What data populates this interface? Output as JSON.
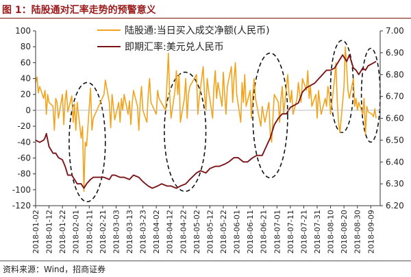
{
  "header": {
    "title": "图 1：陆股通对汇率走势的预警意义"
  },
  "footer": {
    "source": "资料来源：Wind，招商证券"
  },
  "colors": {
    "flow": "#F2A31B",
    "rate": "#7A1418",
    "axis": "#333333",
    "grid": "#BBBBBB",
    "ellipse": "#111111"
  },
  "chart_data": {
    "type": "line",
    "x": [
      "2018-01-02",
      "2018-01-12",
      "2018-01-22",
      "2018-02-01",
      "2018-02-11",
      "2018-02-21",
      "2018-03-03",
      "2018-03-13",
      "2018-03-23",
      "2018-04-02",
      "2018-04-12",
      "2018-04-22",
      "2018-05-02",
      "2018-05-12",
      "2018-05-22",
      "2018-06-01",
      "2018-06-11",
      "2018-06-21",
      "2018-07-01",
      "2018-07-11",
      "2018-07-21",
      "2018-07-31",
      "2018-08-10",
      "2018-08-20",
      "2018-08-30",
      "2018-09-09"
    ],
    "xlim": [
      "2018-01-02",
      "2018-09-16"
    ],
    "left_axis": {
      "ticks": [
        100,
        80,
        60,
        40,
        20,
        0,
        -20,
        -40,
        -60,
        -80,
        -100,
        -120
      ],
      "range": [
        -120,
        100
      ]
    },
    "right_axis": {
      "ticks": [
        "7.00",
        "6.90",
        "6.80",
        "6.70",
        "6.60",
        "6.50",
        "6.40",
        "6.30",
        "6.20"
      ],
      "range": [
        6.2,
        7.0
      ]
    },
    "series": [
      {
        "name": "陆股通:当日买入成交净额(人民币)",
        "axis": "left",
        "points": [
          [
            "2018-01-02",
            35
          ],
          [
            "2018-01-03",
            42
          ],
          [
            "2018-01-04",
            22
          ],
          [
            "2018-01-05",
            30
          ],
          [
            "2018-01-08",
            15
          ],
          [
            "2018-01-09",
            25
          ],
          [
            "2018-01-10",
            -5
          ],
          [
            "2018-01-11",
            20
          ],
          [
            "2018-01-12",
            10
          ],
          [
            "2018-01-15",
            5
          ],
          [
            "2018-01-16",
            -25
          ],
          [
            "2018-01-17",
            15
          ],
          [
            "2018-01-18",
            10
          ],
          [
            "2018-01-19",
            -10
          ],
          [
            "2018-01-22",
            20
          ],
          [
            "2018-01-23",
            -18
          ],
          [
            "2018-01-24",
            12
          ],
          [
            "2018-01-25",
            25
          ],
          [
            "2018-01-26",
            -2
          ],
          [
            "2018-01-29",
            18
          ],
          [
            "2018-01-30",
            -15
          ],
          [
            "2018-01-31",
            8
          ],
          [
            "2018-02-01",
            -25
          ],
          [
            "2018-02-02",
            10
          ],
          [
            "2018-02-05",
            -35
          ],
          [
            "2018-02-06",
            -20
          ],
          [
            "2018-02-07",
            -102
          ],
          [
            "2018-02-08",
            -40
          ],
          [
            "2018-02-09",
            -45
          ],
          [
            "2018-02-12",
            28
          ],
          [
            "2018-02-13",
            -25
          ],
          [
            "2018-02-14",
            -10
          ],
          [
            "2018-02-22",
            20
          ],
          [
            "2018-02-23",
            38
          ],
          [
            "2018-02-26",
            10
          ],
          [
            "2018-02-27",
            -22
          ],
          [
            "2018-02-28",
            20
          ],
          [
            "2018-03-01",
            5
          ],
          [
            "2018-03-02",
            -12
          ],
          [
            "2018-03-05",
            10
          ],
          [
            "2018-03-06",
            -15
          ],
          [
            "2018-03-07",
            15
          ],
          [
            "2018-03-08",
            0
          ],
          [
            "2018-03-09",
            20
          ],
          [
            "2018-03-12",
            -5
          ],
          [
            "2018-03-13",
            12
          ],
          [
            "2018-03-14",
            -18
          ],
          [
            "2018-03-15",
            8
          ],
          [
            "2018-03-16",
            25
          ],
          [
            "2018-03-19",
            5
          ],
          [
            "2018-03-20",
            -25
          ],
          [
            "2018-03-21",
            10
          ],
          [
            "2018-03-22",
            30
          ],
          [
            "2018-03-23",
            0
          ],
          [
            "2018-03-26",
            -15
          ],
          [
            "2018-03-27",
            20
          ],
          [
            "2018-03-28",
            40
          ],
          [
            "2018-03-29",
            10
          ],
          [
            "2018-04-02",
            -5
          ],
          [
            "2018-04-03",
            25
          ],
          [
            "2018-04-04",
            15
          ],
          [
            "2018-04-09",
            0
          ],
          [
            "2018-04-10",
            35
          ],
          [
            "2018-04-11",
            72
          ],
          [
            "2018-04-12",
            20
          ],
          [
            "2018-04-13",
            -10
          ],
          [
            "2018-04-16",
            25
          ],
          [
            "2018-04-17",
            50
          ],
          [
            "2018-04-18",
            20
          ],
          [
            "2018-04-19",
            45
          ],
          [
            "2018-04-20",
            -15
          ],
          [
            "2018-04-23",
            15
          ],
          [
            "2018-04-24",
            40
          ],
          [
            "2018-04-25",
            -10
          ],
          [
            "2018-04-26",
            20
          ],
          [
            "2018-04-27",
            30
          ],
          [
            "2018-05-02",
            45
          ],
          [
            "2018-05-03",
            -5
          ],
          [
            "2018-05-04",
            15
          ],
          [
            "2018-05-07",
            55
          ],
          [
            "2018-05-08",
            20
          ],
          [
            "2018-05-09",
            0
          ],
          [
            "2018-05-10",
            40
          ],
          [
            "2018-05-11",
            25
          ],
          [
            "2018-05-14",
            -10
          ],
          [
            "2018-05-15",
            30
          ],
          [
            "2018-05-16",
            50
          ],
          [
            "2018-05-17",
            15
          ],
          [
            "2018-05-18",
            35
          ],
          [
            "2018-05-21",
            5
          ],
          [
            "2018-05-22",
            48
          ],
          [
            "2018-05-23",
            20
          ],
          [
            "2018-05-24",
            -5
          ],
          [
            "2018-05-25",
            30
          ],
          [
            "2018-05-28",
            55
          ],
          [
            "2018-05-29",
            10
          ],
          [
            "2018-05-30",
            40
          ],
          [
            "2018-05-31",
            60
          ],
          [
            "2018-06-01",
            20
          ],
          [
            "2018-06-04",
            -15
          ],
          [
            "2018-06-05",
            35
          ],
          [
            "2018-06-06",
            10
          ],
          [
            "2018-06-07",
            45
          ],
          [
            "2018-06-08",
            5
          ],
          [
            "2018-06-11",
            25
          ],
          [
            "2018-06-12",
            -10
          ],
          [
            "2018-06-13",
            20
          ],
          [
            "2018-06-14",
            40
          ],
          [
            "2018-06-15",
            15
          ],
          [
            "2018-06-19",
            -20
          ],
          [
            "2018-06-20",
            5
          ],
          [
            "2018-06-21",
            -5
          ],
          [
            "2018-06-22",
            -15
          ],
          [
            "2018-06-25",
            10
          ],
          [
            "2018-06-26",
            -30
          ],
          [
            "2018-06-27",
            -40
          ],
          [
            "2018-06-28",
            -10
          ],
          [
            "2018-06-29",
            20
          ],
          [
            "2018-07-02",
            10
          ],
          [
            "2018-07-03",
            -15
          ],
          [
            "2018-07-04",
            15
          ],
          [
            "2018-07-05",
            30
          ],
          [
            "2018-07-06",
            -5
          ],
          [
            "2018-07-09",
            45
          ],
          [
            "2018-07-10",
            20
          ],
          [
            "2018-07-11",
            10
          ],
          [
            "2018-07-12",
            25
          ],
          [
            "2018-07-13",
            -5
          ],
          [
            "2018-07-16",
            15
          ],
          [
            "2018-07-17",
            35
          ],
          [
            "2018-07-18",
            20
          ],
          [
            "2018-07-19",
            10
          ],
          [
            "2018-07-20",
            40
          ],
          [
            "2018-07-23",
            25
          ],
          [
            "2018-07-24",
            50
          ],
          [
            "2018-07-25",
            15
          ],
          [
            "2018-07-26",
            30
          ],
          [
            "2018-07-27",
            5
          ],
          [
            "2018-07-30",
            20
          ],
          [
            "2018-07-31",
            -10
          ],
          [
            "2018-08-01",
            25
          ],
          [
            "2018-08-02",
            10
          ],
          [
            "2018-08-03",
            -5
          ],
          [
            "2018-08-06",
            15
          ],
          [
            "2018-08-07",
            5
          ],
          [
            "2018-08-08",
            30
          ],
          [
            "2018-08-09",
            20
          ],
          [
            "2018-08-10",
            -5
          ],
          [
            "2018-08-13",
            40
          ],
          [
            "2018-08-14",
            60
          ],
          [
            "2018-08-15",
            10
          ],
          [
            "2018-08-16",
            -15
          ],
          [
            "2018-08-17",
            -28
          ],
          [
            "2018-08-20",
            30
          ],
          [
            "2018-08-21",
            80
          ],
          [
            "2018-08-22",
            55
          ],
          [
            "2018-08-23",
            25
          ],
          [
            "2018-08-24",
            15
          ],
          [
            "2018-08-27",
            40
          ],
          [
            "2018-08-28",
            5
          ],
          [
            "2018-08-29",
            15
          ],
          [
            "2018-08-30",
            0
          ],
          [
            "2018-08-31",
            10
          ],
          [
            "2018-09-03",
            -5
          ],
          [
            "2018-09-04",
            15
          ],
          [
            "2018-09-05",
            -30
          ],
          [
            "2018-09-06",
            5
          ],
          [
            "2018-09-07",
            -2
          ],
          [
            "2018-09-10",
            -5
          ],
          [
            "2018-09-11",
            -8
          ],
          [
            "2018-09-12",
            2
          ],
          [
            "2018-09-13",
            -10
          ]
        ]
      },
      {
        "name": "即期汇率:美元兑人民币",
        "axis": "right",
        "points": [
          [
            "2018-01-02",
            6.5
          ],
          [
            "2018-01-05",
            6.49
          ],
          [
            "2018-01-08",
            6.5
          ],
          [
            "2018-01-09",
            6.51
          ],
          [
            "2018-01-10",
            6.53
          ],
          [
            "2018-01-12",
            6.47
          ],
          [
            "2018-01-15",
            6.44
          ],
          [
            "2018-01-17",
            6.44
          ],
          [
            "2018-01-19",
            6.42
          ],
          [
            "2018-01-22",
            6.41
          ],
          [
            "2018-01-24",
            6.38
          ],
          [
            "2018-01-26",
            6.34
          ],
          [
            "2018-01-29",
            6.34
          ],
          [
            "2018-01-31",
            6.32
          ],
          [
            "2018-02-02",
            6.3
          ],
          [
            "2018-02-05",
            6.3
          ],
          [
            "2018-02-07",
            6.28
          ],
          [
            "2018-02-09",
            6.3
          ],
          [
            "2018-02-12",
            6.32
          ],
          [
            "2018-02-14",
            6.33
          ],
          [
            "2018-02-22",
            6.33
          ],
          [
            "2018-02-26",
            6.32
          ],
          [
            "2018-02-28",
            6.34
          ],
          [
            "2018-03-02",
            6.34
          ],
          [
            "2018-03-06",
            6.33
          ],
          [
            "2018-03-09",
            6.33
          ],
          [
            "2018-03-13",
            6.32
          ],
          [
            "2018-03-16",
            6.34
          ],
          [
            "2018-03-20",
            6.33
          ],
          [
            "2018-03-23",
            6.31
          ],
          [
            "2018-03-27",
            6.29
          ],
          [
            "2018-03-30",
            6.28
          ],
          [
            "2018-04-03",
            6.29
          ],
          [
            "2018-04-06",
            6.3
          ],
          [
            "2018-04-10",
            6.29
          ],
          [
            "2018-04-13",
            6.29
          ],
          [
            "2018-04-17",
            6.28
          ],
          [
            "2018-04-20",
            6.29
          ],
          [
            "2018-04-24",
            6.3
          ],
          [
            "2018-04-27",
            6.32
          ],
          [
            "2018-05-02",
            6.35
          ],
          [
            "2018-05-05",
            6.36
          ],
          [
            "2018-05-09",
            6.35
          ],
          [
            "2018-05-12",
            6.37
          ],
          [
            "2018-05-16",
            6.38
          ],
          [
            "2018-05-19",
            6.38
          ],
          [
            "2018-05-23",
            6.39
          ],
          [
            "2018-05-26",
            6.4
          ],
          [
            "2018-05-30",
            6.42
          ],
          [
            "2018-06-02",
            6.42
          ],
          [
            "2018-06-06",
            6.4
          ],
          [
            "2018-06-09",
            6.4
          ],
          [
            "2018-06-13",
            6.42
          ],
          [
            "2018-06-16",
            6.43
          ],
          [
            "2018-06-20",
            6.43
          ],
          [
            "2018-06-23",
            6.47
          ],
          [
            "2018-06-26",
            6.51
          ],
          [
            "2018-06-29",
            6.57
          ],
          [
            "2018-07-02",
            6.6
          ],
          [
            "2018-07-05",
            6.62
          ],
          [
            "2018-07-08",
            6.62
          ],
          [
            "2018-07-11",
            6.65
          ],
          [
            "2018-07-14",
            6.66
          ],
          [
            "2018-07-17",
            6.67
          ],
          [
            "2018-07-20",
            6.72
          ],
          [
            "2018-07-23",
            6.74
          ],
          [
            "2018-07-26",
            6.75
          ],
          [
            "2018-07-29",
            6.76
          ],
          [
            "2018-08-01",
            6.78
          ],
          [
            "2018-08-04",
            6.8
          ],
          [
            "2018-08-07",
            6.82
          ],
          [
            "2018-08-10",
            6.82
          ],
          [
            "2018-08-13",
            6.83
          ],
          [
            "2018-08-16",
            6.86
          ],
          [
            "2018-08-19",
            6.89
          ],
          [
            "2018-08-22",
            6.86
          ],
          [
            "2018-08-24",
            6.89
          ],
          [
            "2018-08-27",
            6.83
          ],
          [
            "2018-08-29",
            6.82
          ],
          [
            "2018-08-31",
            6.8
          ],
          [
            "2018-09-03",
            6.83
          ],
          [
            "2018-09-05",
            6.82
          ],
          [
            "2018-09-07",
            6.84
          ],
          [
            "2018-09-10",
            6.85
          ],
          [
            "2018-09-13",
            6.86
          ]
        ]
      }
    ],
    "highlights": [
      {
        "from": "2018-01-27",
        "to": "2018-02-23",
        "left_range": [
          -115,
          35
        ]
      },
      {
        "from": "2018-04-08",
        "to": "2018-05-09",
        "left_range": [
          -102,
          48
        ]
      },
      {
        "from": "2018-06-13",
        "to": "2018-07-09",
        "left_range": [
          -85,
          72
        ]
      },
      {
        "from": "2018-08-10",
        "to": "2018-08-27",
        "left_range": [
          -28,
          88
        ]
      },
      {
        "from": "2018-09-02",
        "to": "2018-09-16",
        "left_range": [
          -40,
          78
        ]
      }
    ],
    "grid": false,
    "legend": "top"
  }
}
